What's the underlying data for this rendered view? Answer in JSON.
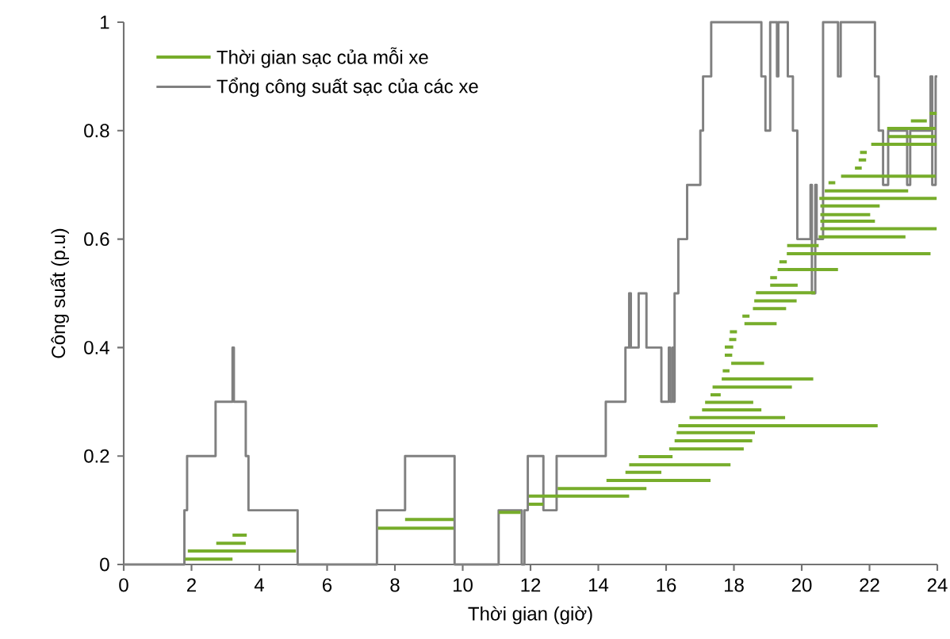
{
  "chart_data": {
    "type": "line",
    "xlabel": "Thời gian (giờ)",
    "ylabel": "Công suất (p.u)",
    "xlim": [
      0,
      24
    ],
    "ylim": [
      0,
      1
    ],
    "xticks": [
      0,
      2,
      4,
      6,
      8,
      10,
      12,
      14,
      16,
      18,
      20,
      22,
      24
    ],
    "yticks": [
      0,
      0.2,
      0.4,
      0.6,
      0.8,
      1
    ],
    "legend": "top left",
    "series": [
      {
        "name": "Thời gian sạc của mỗi xe",
        "type": "line",
        "color": "#77ad2b",
        "x": [
          1.81,
          3.21,
          null,
          1.89,
          5.08,
          null,
          2.73,
          3.6,
          null,
          3.21,
          3.63,
          null,
          7.5,
          9.73,
          null,
          8.3,
          9.73,
          null,
          11.06,
          11.71,
          null,
          11.95,
          12.38,
          null,
          11.95,
          14.91,
          null,
          12.8,
          15.42,
          null,
          14.24,
          17.31,
          null,
          14.8,
          15.86,
          null,
          14.91,
          17.9,
          null,
          15.19,
          16.19,
          null,
          16.09,
          18.29,
          null,
          16.25,
          18.54,
          null,
          16.31,
          18.62,
          null,
          16.36,
          22.24,
          null,
          16.69,
          19.51,
          null,
          17.06,
          18.81,
          null,
          17.15,
          18.57,
          null,
          17.31,
          17.61,
          null,
          17.37,
          19.71,
          null,
          17.64,
          20.34,
          null,
          17.67,
          17.87,
          null,
          17.92,
          18.89,
          null,
          17.73,
          17.95,
          null,
          17.73,
          17.98,
          null,
          17.86,
          18.07,
          null,
          17.88,
          18.09,
          null,
          18.31,
          19.26,
          null,
          18.25,
          18.46,
          null,
          18.56,
          19.54,
          null,
          18.6,
          19.85,
          null,
          18.65,
          20.4,
          null,
          19.07,
          19.88,
          null,
          19.07,
          19.27,
          null,
          19.29,
          21.07,
          null,
          19.34,
          19.56,
          null,
          19.56,
          23.8,
          null,
          19.57,
          20.5,
          null,
          20.5,
          23.06,
          null,
          20.55,
          23.98,
          null,
          20.55,
          22.16,
          null,
          20.55,
          22.02,
          null,
          20.55,
          22.3,
          null,
          20.52,
          23.98,
          null,
          20.68,
          23.14,
          null,
          20.79,
          20.99,
          null,
          21.16,
          23.95,
          null,
          21.57,
          21.77,
          null,
          21.68,
          21.9,
          null,
          21.72,
          21.92,
          null,
          22.05,
          23.98,
          null,
          22.55,
          23.95,
          null,
          22.52,
          23.95,
          null,
          23.22,
          23.69,
          null,
          23.77,
          23.98
        ],
        "values": [
          0.01,
          0.01,
          null,
          0.025,
          0.025,
          null,
          0.039,
          0.039,
          null,
          0.054,
          0.054,
          null,
          0.067,
          0.067,
          null,
          0.083,
          0.083,
          null,
          0.096,
          0.096,
          null,
          0.111,
          0.111,
          null,
          0.126,
          0.126,
          null,
          0.14,
          0.14,
          null,
          0.155,
          0.155,
          null,
          0.17,
          0.17,
          null,
          0.184,
          0.184,
          null,
          0.199,
          0.199,
          null,
          0.213,
          0.213,
          null,
          0.228,
          0.228,
          null,
          0.243,
          0.243,
          null,
          0.256,
          0.256,
          null,
          0.271,
          0.271,
          null,
          0.285,
          0.285,
          null,
          0.299,
          0.299,
          null,
          0.313,
          0.313,
          null,
          0.327,
          0.327,
          null,
          0.342,
          0.342,
          null,
          0.357,
          0.357,
          null,
          0.371,
          0.371,
          null,
          0.386,
          0.386,
          null,
          0.401,
          0.401,
          null,
          0.415,
          0.415,
          null,
          0.429,
          0.429,
          null,
          0.444,
          0.444,
          null,
          0.458,
          0.458,
          null,
          0.472,
          0.472,
          null,
          0.486,
          0.486,
          null,
          0.501,
          0.501,
          null,
          0.515,
          0.515,
          null,
          0.529,
          0.529,
          null,
          0.544,
          0.544,
          null,
          0.558,
          0.558,
          null,
          0.573,
          0.573,
          null,
          0.588,
          0.588,
          null,
          0.604,
          0.604,
          null,
          0.619,
          0.619,
          null,
          0.633,
          0.633,
          null,
          0.645,
          0.645,
          null,
          0.661,
          0.661,
          null,
          0.675,
          0.675,
          null,
          0.689,
          0.689,
          null,
          0.704,
          0.704,
          null,
          0.716,
          0.716,
          null,
          0.731,
          0.731,
          null,
          0.746,
          0.746,
          null,
          0.76,
          0.76,
          null,
          0.775,
          0.775,
          null,
          0.789,
          0.789,
          null,
          0.804,
          0.804,
          null,
          0.818,
          0.818,
          null,
          0.832,
          0.832
        ]
      },
      {
        "name": "Tổng công suất sạc của các xe",
        "type": "step",
        "color": "#808080",
        "x": [
          0,
          1.79,
          1.87,
          2.71,
          3.21,
          3.25,
          3.6,
          3.68,
          5.13,
          7.47,
          8.3,
          9.76,
          11.06,
          11.74,
          11.82,
          11.92,
          12.38,
          12.77,
          14.22,
          14.8,
          14.91,
          14.96,
          15.19,
          15.42,
          15.86,
          16.08,
          16.12,
          16.19,
          16.22,
          16.25,
          16.36,
          16.62,
          17.01,
          17.09,
          17.33,
          18.81,
          18.93,
          19.07,
          19.27,
          19.31,
          19.59,
          19.74,
          19.87,
          20.26,
          20.3,
          20.4,
          20.44,
          20.63,
          21.07,
          21.15,
          22.16,
          22.27,
          22.4,
          22.55,
          23.11,
          23.2,
          23.8,
          23.85,
          23.95,
          24
        ],
        "values": [
          0,
          0.1,
          0.2,
          0.3,
          0.4,
          0.3,
          0.2,
          0.1,
          0,
          0.1,
          0.2,
          0,
          0.1,
          0,
          0.1,
          0.2,
          0.1,
          0.2,
          0.3,
          0.4,
          0.5,
          0.4,
          0.5,
          0.4,
          0.3,
          0.4,
          0.3,
          0.4,
          0.3,
          0.5,
          0.6,
          0.7,
          0.8,
          0.9,
          1,
          0.9,
          0.8,
          1,
          0.9,
          1,
          0.9,
          0.8,
          0.6,
          0.7,
          0.5,
          0.7,
          0.6,
          1,
          0.9,
          1,
          0.9,
          0.8,
          0.7,
          0.8,
          0.7,
          0.8,
          0.9,
          0.7,
          0.9,
          0.9
        ]
      }
    ]
  }
}
